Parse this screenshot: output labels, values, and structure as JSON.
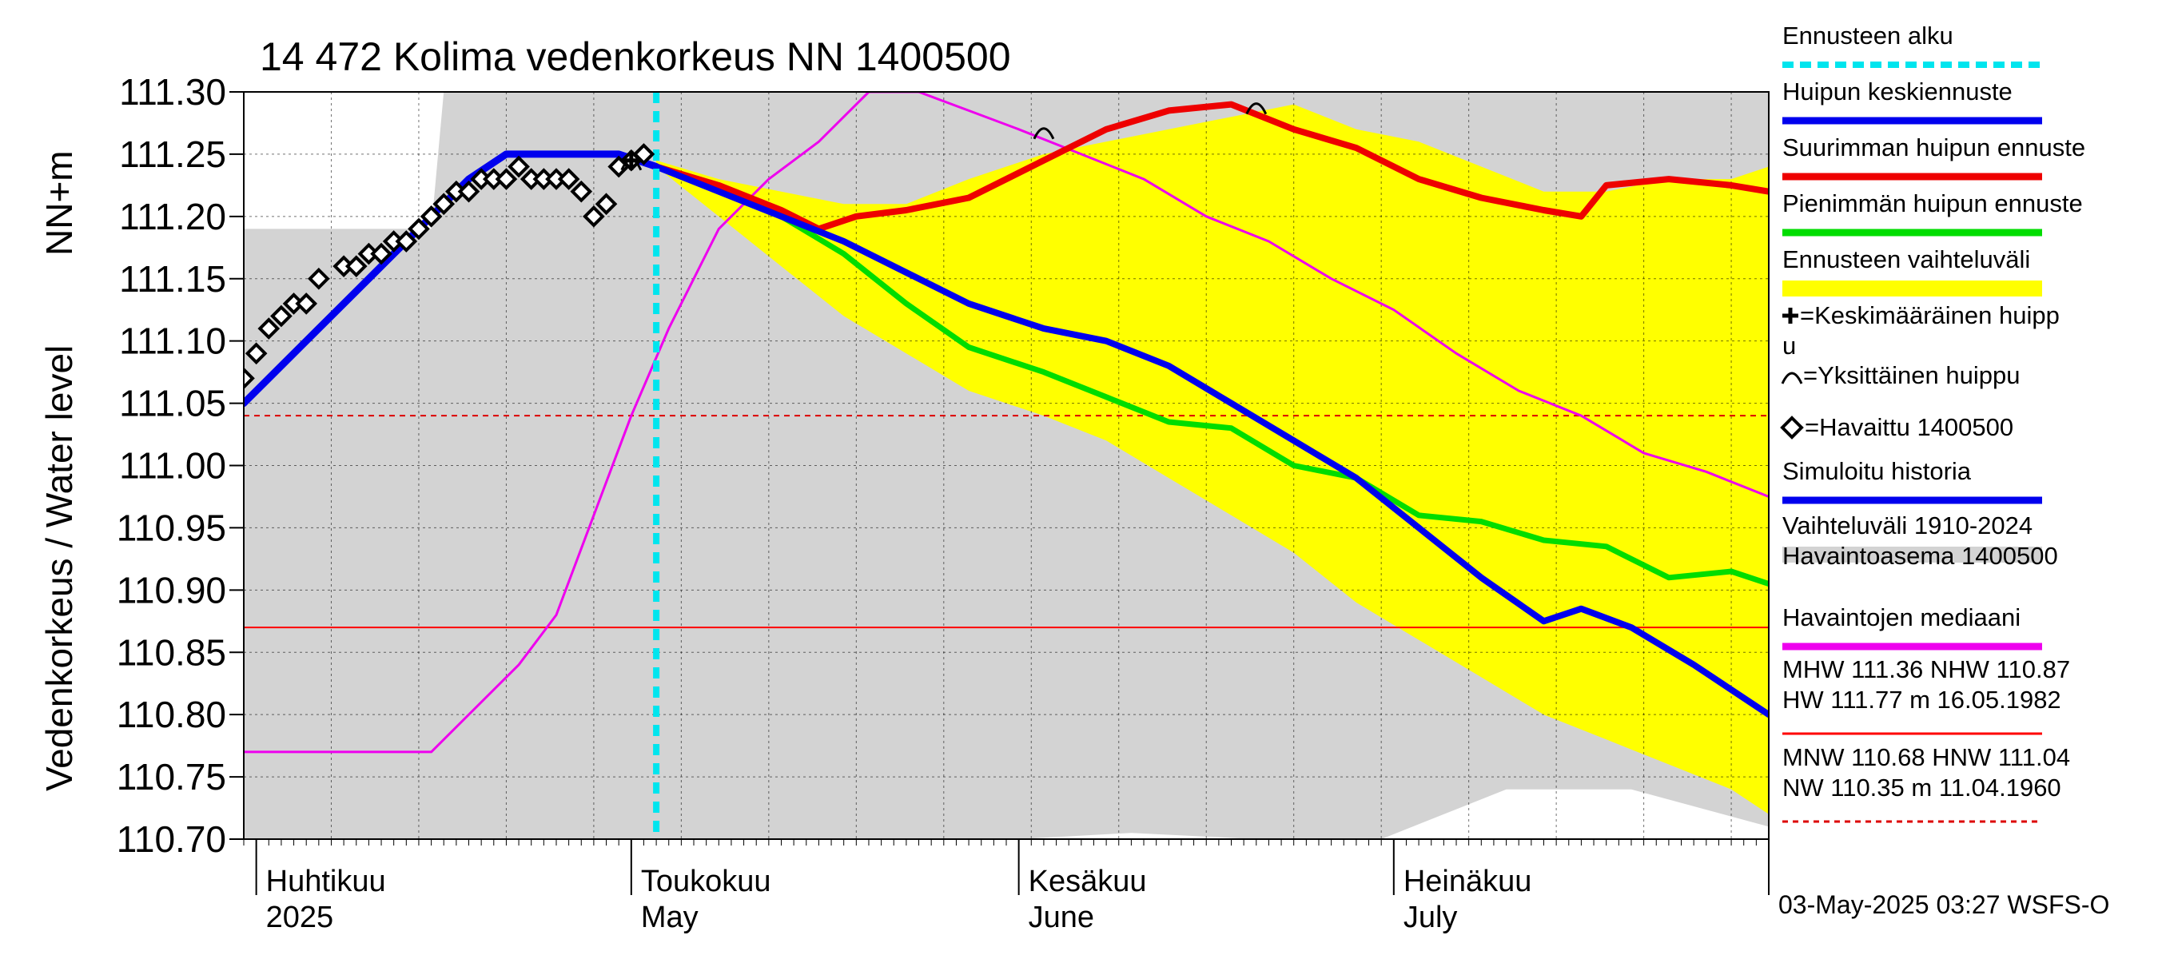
{
  "chart_data": {
    "type": "line",
    "title": "14 472 Kolima vedenkorkeus NN 1400500",
    "ylabel": "Vedenkorkeus / Water level",
    "yunit": "NN+m",
    "ylim": [
      110.7,
      111.3
    ],
    "yticks": [
      {
        "value": 111.3,
        "label": "111.30"
      },
      {
        "value": 111.25,
        "label": "111.25"
      },
      {
        "value": 111.2,
        "label": "111.20"
      },
      {
        "value": 111.15,
        "label": "111.15"
      },
      {
        "value": 111.1,
        "label": "111.10"
      },
      {
        "value": 111.05,
        "label": "111.05"
      },
      {
        "value": 111.0,
        "label": "111.00"
      },
      {
        "value": 110.95,
        "label": "110.95"
      },
      {
        "value": 110.9,
        "label": "110.90"
      },
      {
        "value": 110.85,
        "label": "110.85"
      },
      {
        "value": 110.8,
        "label": "110.80"
      },
      {
        "value": 110.75,
        "label": "110.75"
      },
      {
        "value": 110.7,
        "label": "110.70"
      }
    ],
    "xlim": [
      "2025-03-31",
      "2025-07-31"
    ],
    "month_labels": [
      {
        "date": "2025-04-01",
        "fi": "Huhtikuu",
        "en": "2025"
      },
      {
        "date": "2025-05-01",
        "fi": "Toukokuu",
        "en": "May"
      },
      {
        "date": "2025-06-01",
        "fi": "Kesäkuu",
        "en": "June"
      },
      {
        "date": "2025-07-01",
        "fi": "Heinäkuu",
        "en": "July"
      }
    ],
    "forecast_start": "2025-05-03",
    "grid": true,
    "reference_lines": [
      {
        "name": "MHW",
        "value": 111.36,
        "color": "#ff0000",
        "style": "solid"
      },
      {
        "name": "NHW",
        "value": 110.87,
        "color": "#ff0000",
        "style": "solid"
      },
      {
        "name": "HNW",
        "value": 111.04,
        "color": "#dd0000",
        "style": "dashed"
      }
    ],
    "history_band": {
      "name": "Vaihteluväli 1910-2024 Havaintoasema 1400500",
      "color": "#d3d3d3",
      "x": [
        "2025-03-31",
        "2025-04-15",
        "2025-04-16",
        "2025-05-05",
        "2025-05-20",
        "2025-06-01",
        "2025-06-10",
        "2025-06-20",
        "2025-06-30",
        "2025-07-10",
        "2025-07-20",
        "2025-07-31"
      ],
      "upper": [
        111.19,
        111.19,
        111.3,
        111.3,
        111.3,
        111.3,
        111.3,
        111.3,
        111.3,
        111.3,
        111.3,
        111.3
      ],
      "lower": [
        110.7,
        110.7,
        110.7,
        110.7,
        110.7,
        110.7,
        110.705,
        110.7,
        110.7,
        110.74,
        110.74,
        110.71
      ]
    },
    "forecast_band": {
      "name": "Ennusteen vaihteluväli",
      "color": "#ffff00",
      "x": [
        "2025-05-03",
        "2025-05-08",
        "2025-05-13",
        "2025-05-18",
        "2025-05-23",
        "2025-05-28",
        "2025-06-03",
        "2025-06-08",
        "2025-06-13",
        "2025-06-18",
        "2025-06-23",
        "2025-06-28",
        "2025-07-03",
        "2025-07-08",
        "2025-07-13",
        "2025-07-18",
        "2025-07-23",
        "2025-07-28",
        "2025-07-31"
      ],
      "upper": [
        111.245,
        111.23,
        111.22,
        111.21,
        111.21,
        111.23,
        111.25,
        111.26,
        111.27,
        111.28,
        111.29,
        111.27,
        111.26,
        111.24,
        111.22,
        111.22,
        111.23,
        111.23,
        111.24
      ],
      "lower": [
        111.24,
        111.2,
        111.16,
        111.12,
        111.09,
        111.06,
        111.04,
        111.02,
        110.99,
        110.96,
        110.93,
        110.89,
        110.86,
        110.83,
        110.8,
        110.78,
        110.76,
        110.74,
        110.72
      ]
    },
    "series": [
      {
        "name": "Simuloitu historia",
        "color": "#0000ee",
        "x": [
          "2025-03-31",
          "2025-04-03",
          "2025-04-06",
          "2025-04-09",
          "2025-04-12",
          "2025-04-15",
          "2025-04-18",
          "2025-04-21",
          "2025-04-24",
          "2025-04-27",
          "2025-04-30",
          "2025-05-03"
        ],
        "values": [
          111.05,
          111.08,
          111.11,
          111.14,
          111.17,
          111.2,
          111.23,
          111.25,
          111.25,
          111.25,
          111.25,
          111.24
        ]
      },
      {
        "name": "Huipun keskiennuste",
        "color": "#0000ee",
        "x": [
          "2025-05-03",
          "2025-05-08",
          "2025-05-13",
          "2025-05-18",
          "2025-05-23",
          "2025-05-28",
          "2025-06-03",
          "2025-06-08",
          "2025-06-13",
          "2025-06-18",
          "2025-06-23",
          "2025-06-28",
          "2025-07-03",
          "2025-07-08",
          "2025-07-13",
          "2025-07-16",
          "2025-07-20",
          "2025-07-25",
          "2025-07-31"
        ],
        "values": [
          111.24,
          111.22,
          111.2,
          111.18,
          111.155,
          111.13,
          111.11,
          111.1,
          111.08,
          111.05,
          111.02,
          110.99,
          110.95,
          110.91,
          110.875,
          110.885,
          110.87,
          110.84,
          110.8
        ]
      },
      {
        "name": "Pienimmän huipun ennuste",
        "color": "#00dd00",
        "x": [
          "2025-05-03",
          "2025-05-08",
          "2025-05-13",
          "2025-05-18",
          "2025-05-23",
          "2025-05-28",
          "2025-06-03",
          "2025-06-08",
          "2025-06-13",
          "2025-06-18",
          "2025-06-23",
          "2025-06-28",
          "2025-07-03",
          "2025-07-08",
          "2025-07-13",
          "2025-07-18",
          "2025-07-23",
          "2025-07-28",
          "2025-07-31"
        ],
        "values": [
          111.24,
          111.22,
          111.2,
          111.17,
          111.13,
          111.095,
          111.075,
          111.055,
          111.035,
          111.03,
          111.0,
          110.99,
          110.96,
          110.955,
          110.94,
          110.935,
          110.91,
          110.915,
          110.905
        ]
      },
      {
        "name": "Suurimman huipun ennuste",
        "color": "#ee0000",
        "x": [
          "2025-05-03",
          "2025-05-08",
          "2025-05-13",
          "2025-05-16",
          "2025-05-19",
          "2025-05-23",
          "2025-05-28",
          "2025-06-03",
          "2025-06-08",
          "2025-06-13",
          "2025-06-18",
          "2025-06-23",
          "2025-06-28",
          "2025-07-03",
          "2025-07-08",
          "2025-07-13",
          "2025-07-16",
          "2025-07-18",
          "2025-07-23",
          "2025-07-28",
          "2025-07-31"
        ],
        "values": [
          111.24,
          111.225,
          111.205,
          111.19,
          111.2,
          111.205,
          111.215,
          111.245,
          111.27,
          111.285,
          111.29,
          111.27,
          111.255,
          111.23,
          111.215,
          111.205,
          111.2,
          111.225,
          111.23,
          111.225,
          111.22
        ]
      },
      {
        "name": "Havaintojen mediaani",
        "color": "#ee00ee",
        "x": [
          "2025-03-31",
          "2025-04-15",
          "2025-04-18",
          "2025-04-22",
          "2025-04-25",
          "2025-04-28",
          "2025-05-01",
          "2025-05-04",
          "2025-05-08",
          "2025-05-12",
          "2025-05-16",
          "2025-05-20",
          "2025-05-24",
          "2025-05-28",
          "2025-06-01",
          "2025-06-06",
          "2025-06-11",
          "2025-06-16",
          "2025-06-21",
          "2025-06-26",
          "2025-07-01",
          "2025-07-06",
          "2025-07-11",
          "2025-07-16",
          "2025-07-21",
          "2025-07-26",
          "2025-07-31"
        ],
        "values": [
          110.77,
          110.77,
          110.8,
          110.84,
          110.88,
          110.96,
          111.04,
          111.11,
          111.19,
          111.23,
          111.26,
          111.3,
          111.3,
          111.285,
          111.27,
          111.25,
          111.23,
          111.2,
          111.18,
          111.15,
          111.125,
          111.09,
          111.06,
          111.04,
          111.01,
          110.995,
          110.975
        ]
      }
    ],
    "observed": {
      "name": "Havaittu 1400500",
      "x": [
        "2025-03-31",
        "2025-04-01",
        "2025-04-02",
        "2025-04-03",
        "2025-04-04",
        "2025-04-05",
        "2025-04-06",
        "2025-04-08",
        "2025-04-09",
        "2025-04-10",
        "2025-04-11",
        "2025-04-12",
        "2025-04-13",
        "2025-04-14",
        "2025-04-15",
        "2025-04-16",
        "2025-04-17",
        "2025-04-18",
        "2025-04-19",
        "2025-04-20",
        "2025-04-21",
        "2025-04-22",
        "2025-04-23",
        "2025-04-24",
        "2025-04-25",
        "2025-04-26",
        "2025-04-27",
        "2025-04-28",
        "2025-04-29",
        "2025-04-30",
        "2025-05-01",
        "2025-05-02"
      ],
      "values": [
        111.07,
        111.09,
        111.11,
        111.12,
        111.13,
        111.13,
        111.15,
        111.16,
        111.16,
        111.17,
        111.17,
        111.18,
        111.18,
        111.19,
        111.2,
        111.21,
        111.22,
        111.22,
        111.23,
        111.23,
        111.23,
        111.24,
        111.23,
        111.23,
        111.23,
        111.23,
        111.22,
        111.2,
        111.21,
        111.24,
        111.245,
        111.25
      ]
    },
    "mean_peak": {
      "name": "Keskimääräinen huippu",
      "x": "2025-05-01",
      "value": 111.245
    },
    "single_peaks": {
      "name": "Yksittäinen huippu",
      "x": [
        "2025-05-01",
        "2025-06-03",
        "2025-06-20"
      ],
      "values": [
        111.245,
        111.27,
        111.29
      ]
    },
    "footer": "03-May-2025 03:27 WSFS-O"
  },
  "legend": [
    {
      "label": "Ennusteen alku",
      "kind": "dash",
      "color": "#00e5ee"
    },
    {
      "label": "Huipun keskiennuste",
      "kind": "line",
      "color": "#0000ee"
    },
    {
      "label": "Suurimman huipun ennuste",
      "kind": "line",
      "color": "#ee0000"
    },
    {
      "label": "Pienimmän huipun ennuste",
      "kind": "line",
      "color": "#00dd00"
    },
    {
      "label": "Ennusteen vaihteluväli",
      "kind": "band",
      "color": "#ffff00"
    },
    {
      "label": "=Keskimääräinen huipp",
      "label2": "u",
      "kind": "plus"
    },
    {
      "label": "=Yksittäinen huippu",
      "kind": "arc"
    },
    {
      "label": "=Havaittu 1400500",
      "kind": "diamond"
    },
    {
      "label": "Simuloitu historia",
      "kind": "line",
      "color": "#0000ee"
    },
    {
      "label": "Vaihteluväli 1910-2024",
      "label2": " Havaintoasema 1400500",
      "kind": "band",
      "color": "#d3d3d3"
    },
    {
      "label": "Havaintojen mediaani",
      "kind": "line",
      "color": "#ee00ee"
    },
    {
      "label": "MHW 111.36 NHW 110.87",
      "label2": "HW 111.77 m 16.05.1982",
      "kind": "line-thin",
      "color": "#ff0000"
    },
    {
      "label": "MNW 110.68 HNW 111.04",
      "label2": "NW 110.35 m 11.04.1960",
      "kind": "dash-thin",
      "color": "#dd0000"
    }
  ]
}
